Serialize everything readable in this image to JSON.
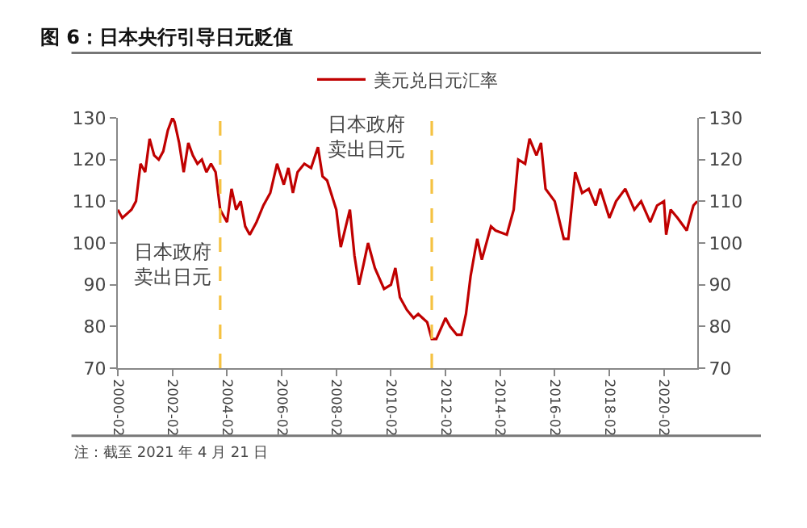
{
  "chart_data": {
    "type": "line",
    "title": "图 6：日本央行引导日元贬值",
    "x": [
      "2000-02",
      "2000-04",
      "2000-06",
      "2000-08",
      "2000-10",
      "2000-12",
      "2001-02",
      "2001-04",
      "2001-06",
      "2001-08",
      "2001-10",
      "2001-12",
      "2002-02",
      "2002-03",
      "2002-05",
      "2002-07",
      "2002-09",
      "2002-11",
      "2003-01",
      "2003-03",
      "2003-05",
      "2003-07",
      "2003-09",
      "2003-11",
      "2004-02",
      "2004-04",
      "2004-06",
      "2004-08",
      "2004-10",
      "2004-12",
      "2005-03",
      "2005-06",
      "2005-09",
      "2005-12",
      "2006-03",
      "2006-05",
      "2006-07",
      "2006-09",
      "2006-12",
      "2007-03",
      "2007-06",
      "2007-08",
      "2007-10",
      "2008-02",
      "2008-04",
      "2008-08",
      "2008-10",
      "2008-12",
      "2009-02",
      "2009-04",
      "2009-07",
      "2009-11",
      "2010-02",
      "2010-04",
      "2010-06",
      "2010-09",
      "2010-12",
      "2011-02",
      "2011-04",
      "2011-06",
      "2011-08",
      "2011-10",
      "2012-02",
      "2012-04",
      "2012-07",
      "2012-09",
      "2012-11",
      "2013-01",
      "2013-03",
      "2013-04",
      "2013-06",
      "2013-10",
      "2013-12",
      "2014-05",
      "2014-08",
      "2014-10",
      "2015-01",
      "2015-03",
      "2015-06",
      "2015-08",
      "2015-10",
      "2016-02",
      "2016-06",
      "2016-08",
      "2016-11",
      "2017-02",
      "2017-05",
      "2017-08",
      "2017-10",
      "2018-02",
      "2018-05",
      "2018-09",
      "2019-01",
      "2019-04",
      "2019-08",
      "2019-11",
      "2020-02",
      "2020-03",
      "2020-05",
      "2020-08",
      "2020-12",
      "2021-03",
      "2021-04-21"
    ],
    "series": [
      {
        "name": "美元兑日元汇率",
        "color": "#c00000",
        "values": [
          108,
          106,
          107,
          108,
          110,
          119,
          117,
          125,
          121,
          120,
          122,
          127,
          130,
          129,
          124,
          117,
          124,
          121,
          119,
          120,
          117,
          119,
          117,
          108,
          105,
          113,
          108,
          110,
          104,
          102,
          105,
          109,
          112,
          119,
          114,
          118,
          112,
          117,
          119,
          118,
          123,
          116,
          115,
          108,
          99,
          108,
          97,
          90,
          95,
          100,
          94,
          89,
          90,
          94,
          87,
          84,
          82,
          83,
          82,
          81,
          77,
          77,
          82,
          80,
          78,
          78,
          83,
          92,
          98,
          101,
          96,
          104,
          103,
          102,
          108,
          120,
          119,
          125,
          121,
          124,
          113,
          110,
          101,
          101,
          117,
          112,
          113,
          109,
          113,
          106,
          110,
          113,
          108,
          110,
          105,
          109,
          110,
          102,
          108,
          106,
          103,
          109,
          110
        ]
      }
    ],
    "xlim": [
      "2000-02",
      "2021-04-21"
    ],
    "xticks": [
      "2000-02",
      "2002-02",
      "2004-02",
      "2006-02",
      "2008-02",
      "2010-02",
      "2012-02",
      "2014-02",
      "2016-02",
      "2018-02",
      "2020-02"
    ],
    "ylim": [
      70,
      130
    ],
    "yticks": [
      70,
      80,
      90,
      100,
      110,
      120,
      130
    ],
    "y2lim": [
      70,
      130
    ],
    "y2ticks": [
      70,
      80,
      90,
      100,
      110,
      120,
      130
    ],
    "ref_lines": [
      {
        "axis": "x",
        "value": "2003-11",
        "color": "#f5c242",
        "line_style": "dashed"
      },
      {
        "axis": "x",
        "value": "2011-08",
        "color": "#f5c242",
        "line_style": "dashed"
      }
    ],
    "annotations": [
      "日本政府卖出日元",
      "日本政府卖出日元",
      "注：截至 2021 年 4 月 21 日"
    ],
    "legend": "top",
    "grid": false,
    "marker": "none",
    "line_style": "solid"
  }
}
